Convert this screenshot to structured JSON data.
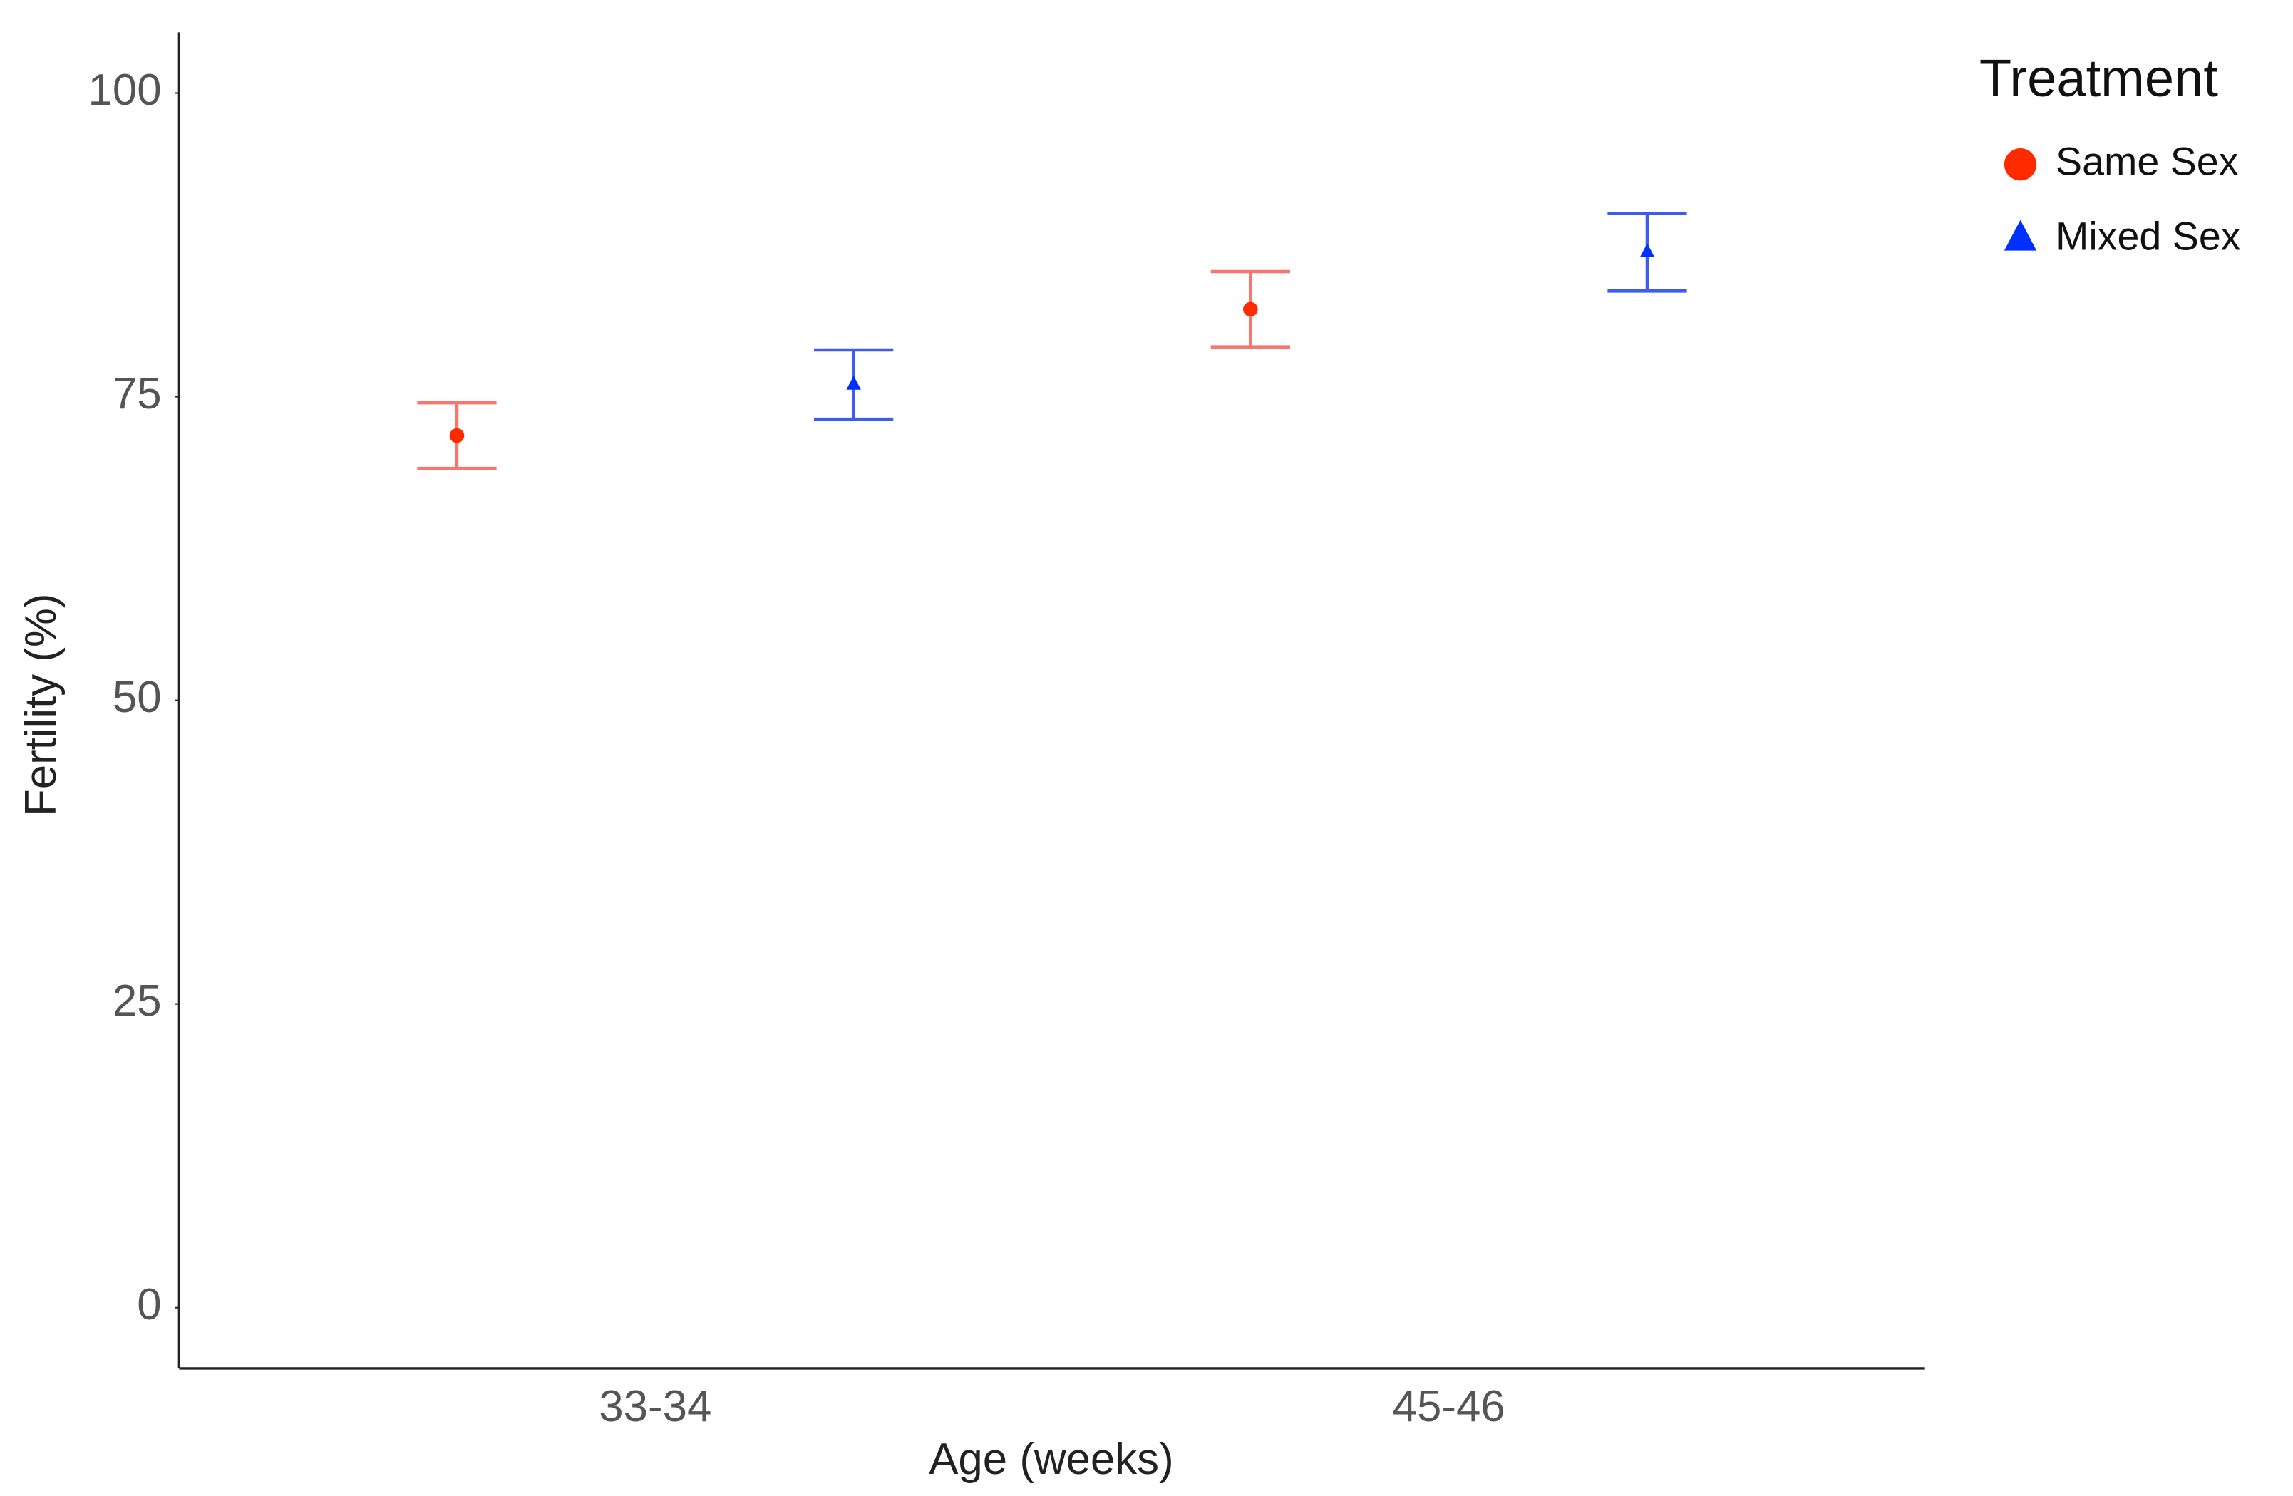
{
  "chart_data": {
    "type": "errorbar",
    "x_label": "Age (weeks)",
    "y_label": "Fertility (%)",
    "categories": [
      "33-34",
      "45-46"
    ],
    "ylim": [
      -5,
      105
    ],
    "yticks": [
      0,
      25,
      50,
      75,
      100
    ],
    "legend_title": "Treatment",
    "legend_position": "right",
    "series": [
      {
        "name": "Same Sex",
        "color": "#f8766d",
        "point_color": "#ff2a00",
        "shape": "circle",
        "values": [
          71.8,
          82.2
        ],
        "errors": [
          2.7,
          3.1
        ]
      },
      {
        "name": "Mixed Sex",
        "color": "#3f5cf0",
        "point_color": "#0030ff",
        "shape": "triangle",
        "values": [
          76.0,
          86.9
        ],
        "errors": [
          2.85,
          3.2
        ]
      }
    ]
  }
}
